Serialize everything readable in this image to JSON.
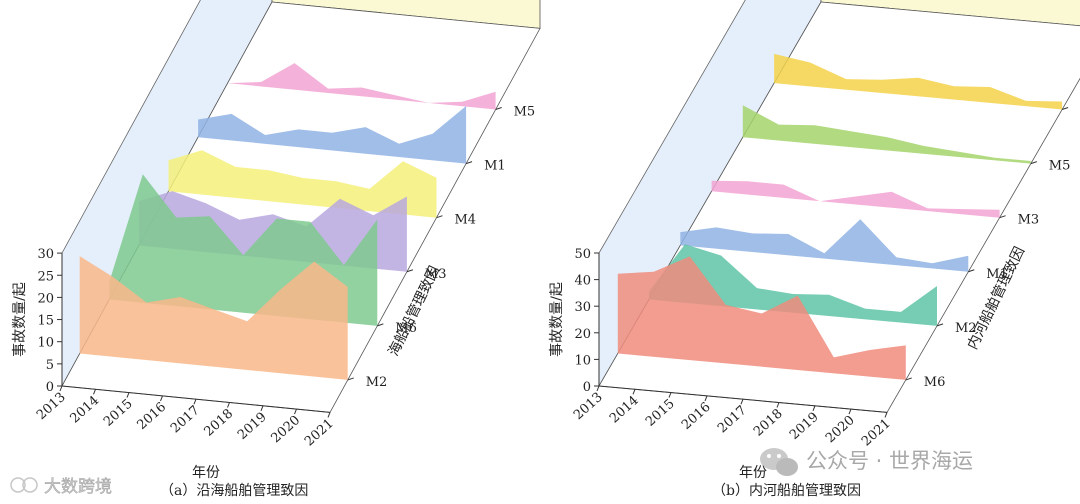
{
  "chart_data": [
    {
      "type": "area",
      "caption": "（a）沿海船舶管理致因",
      "xlabel": "年份",
      "ylabel": "事故数量/起",
      "zlabel": "海船船管理致因",
      "ylim": [
        0,
        30
      ],
      "yticks": [
        0,
        5,
        10,
        15,
        20,
        25,
        30
      ],
      "x": [
        "2013",
        "2014",
        "2015",
        "2016",
        "2017",
        "2018",
        "2019",
        "2020",
        "2021"
      ],
      "series": [
        {
          "name": "M2",
          "color": "#f9b78a",
          "values": [
            22,
            18,
            13,
            15,
            13,
            11,
            19,
            26,
            21
          ]
        },
        {
          "name": "M6",
          "color": "#7fc98f",
          "values": [
            4,
            29,
            20,
            21,
            13,
            22,
            22,
            13,
            24
          ]
        },
        {
          "name": "M3",
          "color": "#b9a8de",
          "values": [
            10,
            13,
            11,
            8,
            10,
            8,
            15,
            12,
            17
          ]
        },
        {
          "name": "M4",
          "color": "#f5f07a",
          "values": [
            7,
            10,
            7,
            7,
            6,
            6,
            5,
            12,
            9
          ]
        },
        {
          "name": "M1",
          "color": "#8fb3e3",
          "values": [
            4,
            6,
            2,
            4,
            4,
            6,
            3,
            6,
            13
          ]
        },
        {
          "name": "M5",
          "color": "#f2a3d2",
          "values": [
            0,
            1,
            6,
            1,
            2,
            1,
            0,
            1,
            4
          ]
        }
      ]
    },
    {
      "type": "area",
      "caption": "（b）内河船舶管理致因",
      "xlabel": "年份",
      "ylabel": "事故数量/起",
      "zlabel": "内河船舶管理致因",
      "ylim": [
        0,
        50
      ],
      "yticks": [
        0,
        10,
        20,
        30,
        40,
        50
      ],
      "x": [
        "2013",
        "2014",
        "2015",
        "2016",
        "2017",
        "2018",
        "2019",
        "2020",
        "2021"
      ],
      "series": [
        {
          "name": "M6",
          "color": "#f08c7c",
          "values": [
            30,
            32,
            39,
            22,
            20,
            28,
            6,
            10,
            13
          ]
        },
        {
          "name": "M2",
          "color": "#5ec4a6",
          "values": [
            3,
            22,
            19,
            8,
            7,
            8,
            4,
            4,
            15
          ]
        },
        {
          "name": "M1",
          "color": "#8fb3e3",
          "values": [
            5,
            8,
            7,
            8,
            2,
            16,
            3,
            2,
            6
          ]
        },
        {
          "name": "M3",
          "color": "#f2a3d2",
          "values": [
            4,
            5,
            5,
            0,
            3,
            6,
            1,
            2,
            3
          ]
        },
        {
          "name": "M5",
          "color": "#a5d46b",
          "values": [
            12,
            6,
            7,
            6,
            5,
            3,
            2,
            1,
            1
          ]
        },
        {
          "name": "M4",
          "color": "#f5d24a",
          "values": [
            11,
            9,
            4,
            5,
            7,
            5,
            6,
            2,
            3
          ]
        }
      ]
    }
  ],
  "watermarks": {
    "left": "大数跨境",
    "right": "公众号 · 世界海运"
  }
}
